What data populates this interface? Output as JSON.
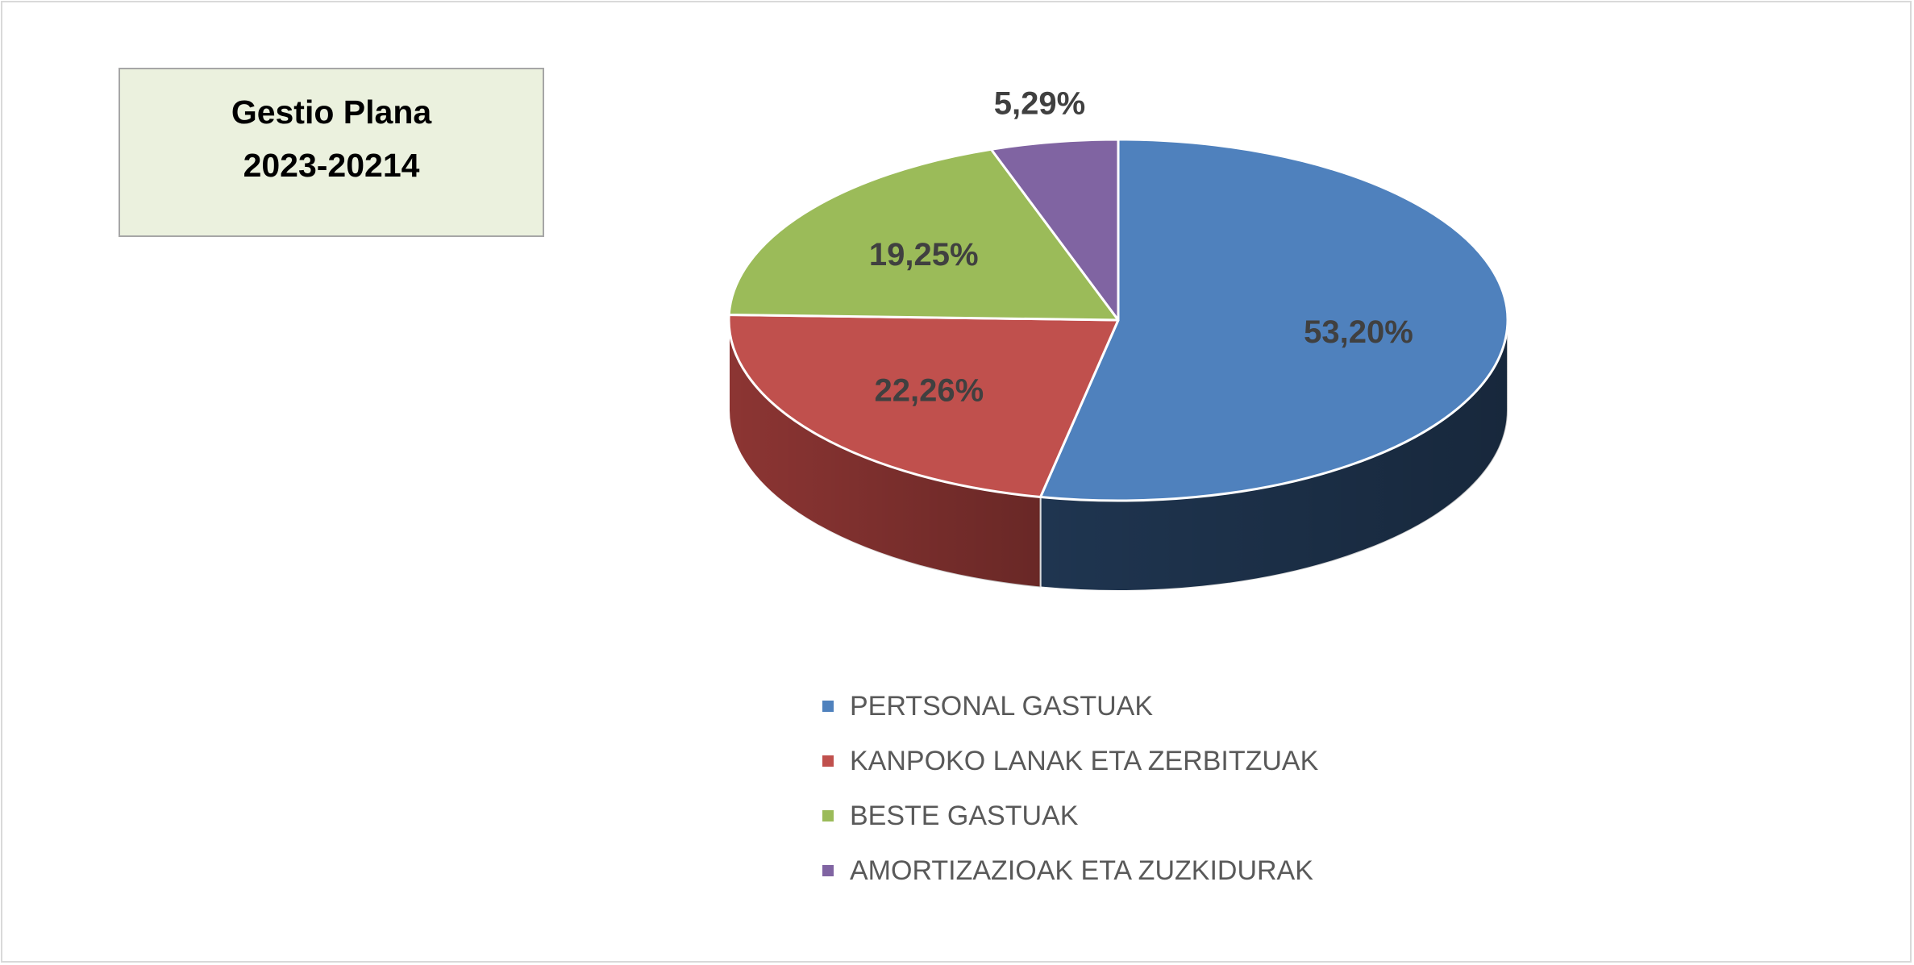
{
  "title": {
    "line1": "Gestio Plana",
    "line2": "2023-20214"
  },
  "chart_data": {
    "type": "pie",
    "style": "3d",
    "legend_position": "bottom",
    "slices": [
      {
        "name": "PERTSONAL GASTUAK",
        "value": 53.2,
        "label": "53,20%",
        "color": "#4f81bd",
        "side_color": "#1f3550"
      },
      {
        "name": "KANPOKO LANAK ETA ZERBITZUAK",
        "value": 22.26,
        "label": "22,26%",
        "color": "#c0504d",
        "side_color": "#8c3533"
      },
      {
        "name": "BESTE GASTUAK",
        "value": 19.25,
        "label": "19,25%",
        "color": "#9bbb59",
        "side_color": "#6f8a3c"
      },
      {
        "name": "AMORTIZAZIOAK ETA ZUZKIDURAK",
        "value": 5.29,
        "label": "5,29%",
        "color": "#8064a2",
        "side_color": "#5a4675"
      }
    ]
  }
}
